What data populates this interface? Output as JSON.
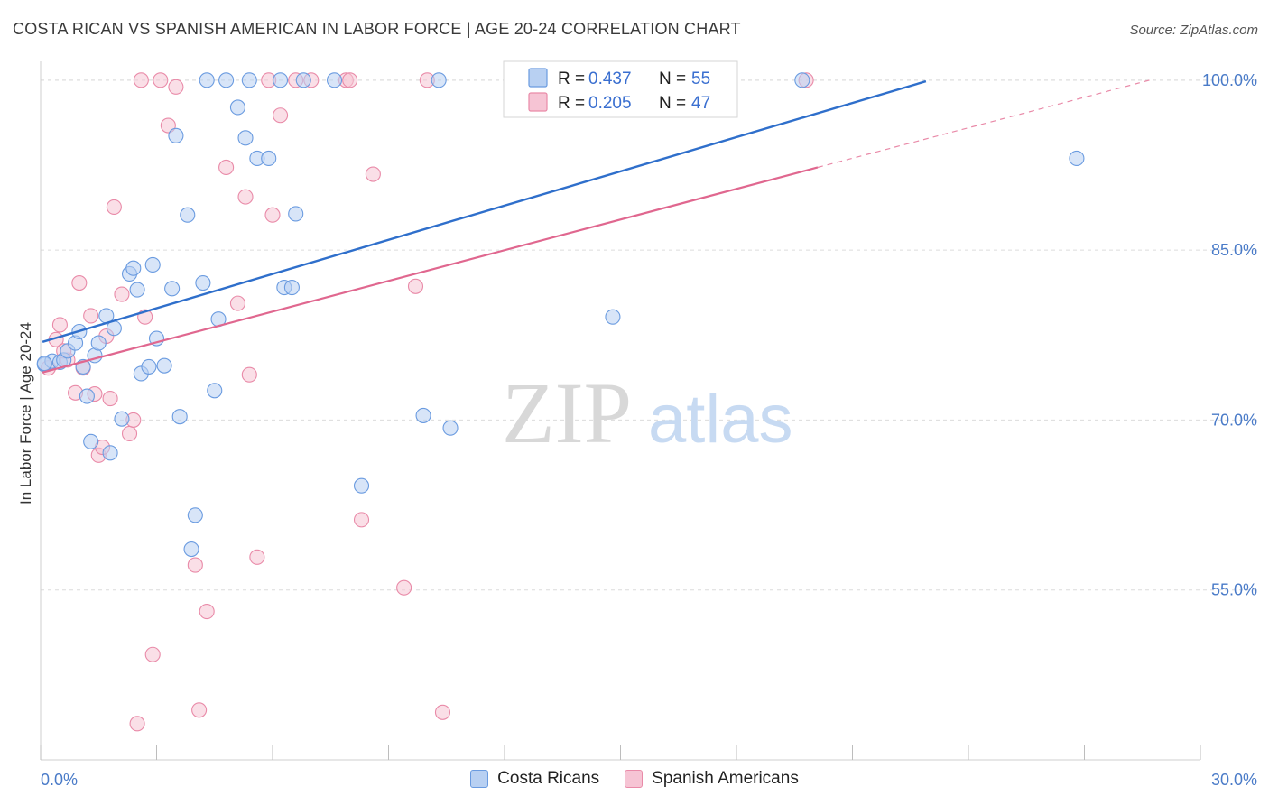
{
  "header": {
    "title": "COSTA RICAN VS SPANISH AMERICAN IN LABOR FORCE | AGE 20-24 CORRELATION CHART",
    "source": "Source: ZipAtlas.com"
  },
  "watermark": {
    "zip": "ZIP",
    "atlas": "atlas"
  },
  "chart_data": {
    "type": "scatter",
    "title": "COSTA RICAN VS SPANISH AMERICAN IN LABOR FORCE | AGE 20-24 CORRELATION CHART",
    "ylabel": "In Labor Force | Age 20-24",
    "x_ticks": [
      "0.0%",
      "30.0%"
    ],
    "y_ticks": [
      "100.0%",
      "85.0%",
      "70.0%",
      "55.0%"
    ],
    "y_tick_values": [
      100,
      85,
      70,
      55
    ],
    "xlim": [
      0,
      30
    ],
    "ylim": [
      40,
      101.5
    ],
    "grid": true,
    "legend_position": "top-center",
    "series": [
      {
        "name": "Costa Ricans",
        "color": "#6a9be0",
        "fill": "#b8d0f2",
        "R": "0.437",
        "N": "55",
        "trend": [
          [
            0.05,
            76.9
          ],
          [
            22.9,
            99.9
          ]
        ],
        "points": [
          [
            0.1,
            74.9
          ],
          [
            0.3,
            75.2
          ],
          [
            0.5,
            75.1
          ],
          [
            0.6,
            75.3
          ],
          [
            0.7,
            76.1
          ],
          [
            0.9,
            76.8
          ],
          [
            1.0,
            77.8
          ],
          [
            1.1,
            74.7
          ],
          [
            1.2,
            72.1
          ],
          [
            1.3,
            68.1
          ],
          [
            1.4,
            75.7
          ],
          [
            1.5,
            76.8
          ],
          [
            1.7,
            79.2
          ],
          [
            1.8,
            67.1
          ],
          [
            1.9,
            78.1
          ],
          [
            2.1,
            70.1
          ],
          [
            2.3,
            82.9
          ],
          [
            2.4,
            83.4
          ],
          [
            2.5,
            81.5
          ],
          [
            2.6,
            74.1
          ],
          [
            2.8,
            74.7
          ],
          [
            2.9,
            83.7
          ],
          [
            3.0,
            77.2
          ],
          [
            3.2,
            74.8
          ],
          [
            3.4,
            81.6
          ],
          [
            3.5,
            95.1
          ],
          [
            3.6,
            70.3
          ],
          [
            3.8,
            88.1
          ],
          [
            3.9,
            58.6
          ],
          [
            4.0,
            61.6
          ],
          [
            4.2,
            82.1
          ],
          [
            4.3,
            100.0
          ],
          [
            4.5,
            72.6
          ],
          [
            4.6,
            78.9
          ],
          [
            4.8,
            100.0
          ],
          [
            5.1,
            97.6
          ],
          [
            5.3,
            94.9
          ],
          [
            5.4,
            100.0
          ],
          [
            5.6,
            93.1
          ],
          [
            5.9,
            93.1
          ],
          [
            6.2,
            100.0
          ],
          [
            6.3,
            81.7
          ],
          [
            6.5,
            81.7
          ],
          [
            6.6,
            88.2
          ],
          [
            6.8,
            100.0
          ],
          [
            7.6,
            100.0
          ],
          [
            8.3,
            64.2
          ],
          [
            9.9,
            70.4
          ],
          [
            10.3,
            100.0
          ],
          [
            10.6,
            69.3
          ],
          [
            14.8,
            79.1
          ],
          [
            17.0,
            100.0
          ],
          [
            19.7,
            100.0
          ],
          [
            26.8,
            93.1
          ],
          [
            0.1,
            75.0
          ]
        ]
      },
      {
        "name": "Spanish Americans",
        "color": "#e98aa8",
        "fill": "#f6c4d4",
        "R": "0.205",
        "N": "47",
        "trend": [
          [
            0.05,
            74.2
          ],
          [
            20.1,
            92.3
          ]
        ],
        "trend_extension": [
          [
            20.1,
            92.3
          ],
          [
            28.8,
            100.1
          ]
        ],
        "points": [
          [
            0.2,
            74.6
          ],
          [
            0.4,
            77.1
          ],
          [
            0.5,
            78.4
          ],
          [
            0.7,
            75.3
          ],
          [
            0.9,
            72.4
          ],
          [
            1.0,
            82.1
          ],
          [
            1.1,
            74.6
          ],
          [
            1.3,
            79.2
          ],
          [
            1.4,
            72.3
          ],
          [
            1.5,
            66.9
          ],
          [
            1.6,
            67.6
          ],
          [
            1.7,
            77.4
          ],
          [
            1.8,
            71.9
          ],
          [
            1.9,
            88.8
          ],
          [
            2.1,
            81.1
          ],
          [
            2.3,
            68.8
          ],
          [
            2.4,
            70.0
          ],
          [
            2.5,
            43.2
          ],
          [
            2.6,
            100.0
          ],
          [
            2.7,
            79.1
          ],
          [
            2.9,
            49.3
          ],
          [
            3.1,
            100.0
          ],
          [
            3.3,
            96.0
          ],
          [
            3.5,
            99.4
          ],
          [
            4.0,
            57.2
          ],
          [
            4.1,
            44.4
          ],
          [
            4.3,
            53.1
          ],
          [
            4.8,
            92.3
          ],
          [
            5.1,
            80.3
          ],
          [
            5.3,
            89.7
          ],
          [
            5.4,
            74.0
          ],
          [
            5.6,
            57.9
          ],
          [
            5.9,
            100.0
          ],
          [
            6.0,
            88.1
          ],
          [
            6.2,
            96.9
          ],
          [
            6.6,
            100.0
          ],
          [
            7.0,
            100.0
          ],
          [
            7.9,
            100.0
          ],
          [
            8.0,
            100.0
          ],
          [
            8.3,
            61.2
          ],
          [
            8.6,
            91.7
          ],
          [
            9.4,
            55.2
          ],
          [
            9.7,
            81.8
          ],
          [
            10.0,
            100.0
          ],
          [
            10.4,
            44.2
          ],
          [
            19.8,
            100.0
          ],
          [
            0.6,
            76.1
          ]
        ]
      }
    ]
  },
  "legend_bottom": [
    "Costa Ricans",
    "Spanish Americans"
  ]
}
